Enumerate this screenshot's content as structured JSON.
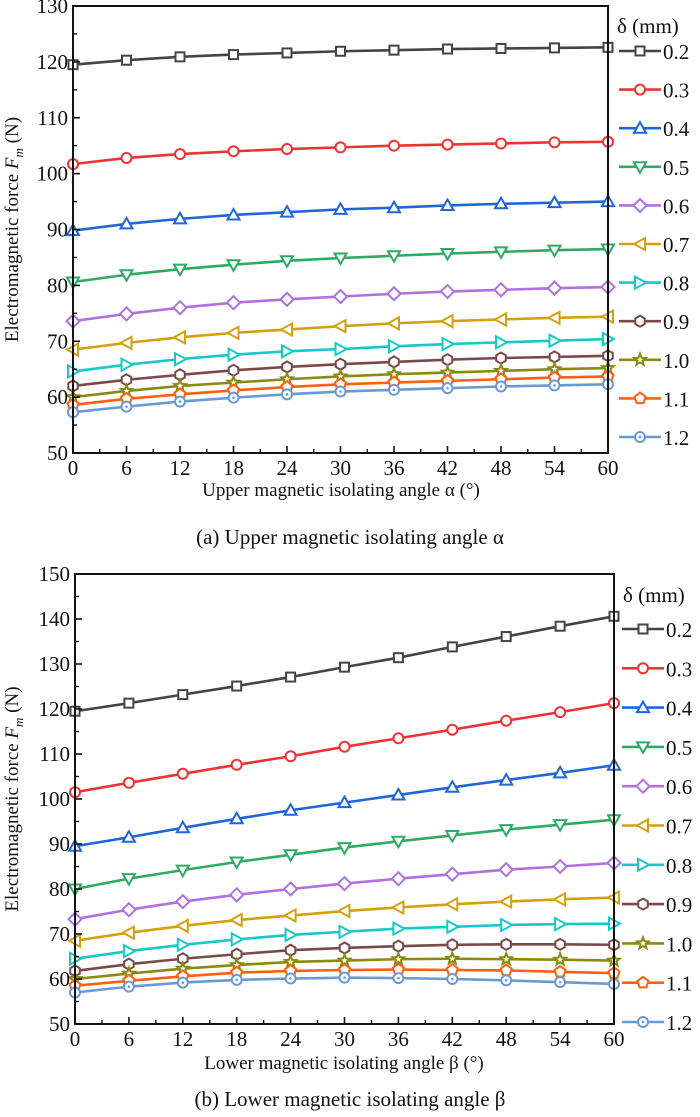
{
  "chart_data": [
    {
      "type": "line",
      "caption": "(a) Upper magnetic isolating angle α",
      "xlabel": "Upper magnetic isolating angle α (°)",
      "ylabel": "Electromagnetic force Fm (N)",
      "ylabel_parts": {
        "prefix": "Electromagnetic force ",
        "symbol": "F",
        "subscript": "m",
        "suffix": " (N)"
      },
      "xlim": [
        0,
        60
      ],
      "ylim": [
        50,
        130
      ],
      "xticks": [
        "0",
        "6",
        "12",
        "18",
        "24",
        "30",
        "36",
        "42",
        "48",
        "54",
        "60"
      ],
      "yticks": [
        "50",
        "60",
        "70",
        "80",
        "90",
        "100",
        "110",
        "120",
        "130"
      ],
      "grid": false,
      "legend_title": "δ (mm)",
      "legend_placement": "right-outside",
      "x": [
        0,
        6,
        12,
        18,
        24,
        30,
        36,
        42,
        48,
        54,
        60
      ],
      "series": [
        {
          "name": "0.2",
          "color": "#444444",
          "marker": "square",
          "values": [
            119.5,
            120.3,
            120.9,
            121.3,
            121.6,
            121.9,
            122.1,
            122.3,
            122.4,
            122.5,
            122.6
          ]
        },
        {
          "name": "0.3",
          "color": "#ee3333",
          "marker": "circle",
          "values": [
            101.7,
            102.8,
            103.5,
            104.0,
            104.4,
            104.7,
            105.0,
            105.2,
            105.4,
            105.6,
            105.7
          ]
        },
        {
          "name": "0.4",
          "color": "#1f66d9",
          "marker": "triangle-up",
          "values": [
            89.8,
            91.0,
            91.9,
            92.6,
            93.1,
            93.6,
            93.9,
            94.3,
            94.6,
            94.8,
            95.0
          ]
        },
        {
          "name": "0.5",
          "color": "#2eaa62",
          "marker": "triangle-down",
          "values": [
            80.6,
            81.9,
            82.9,
            83.7,
            84.4,
            84.9,
            85.3,
            85.7,
            86.0,
            86.3,
            86.5
          ]
        },
        {
          "name": "0.6",
          "color": "#b070e0",
          "marker": "diamond",
          "values": [
            73.6,
            74.9,
            76.0,
            76.9,
            77.5,
            78.0,
            78.5,
            78.9,
            79.2,
            79.5,
            79.7
          ]
        },
        {
          "name": "0.7",
          "color": "#d4a010",
          "marker": "triangle-left",
          "values": [
            68.5,
            69.7,
            70.7,
            71.5,
            72.1,
            72.7,
            73.2,
            73.6,
            73.9,
            74.2,
            74.4
          ]
        },
        {
          "name": "0.8",
          "color": "#16c8c8",
          "marker": "triangle-right",
          "values": [
            64.6,
            65.8,
            66.8,
            67.6,
            68.2,
            68.6,
            69.1,
            69.5,
            69.8,
            70.1,
            70.4
          ]
        },
        {
          "name": "0.9",
          "color": "#7a4a4a",
          "marker": "hexagon",
          "values": [
            62.0,
            63.1,
            64.0,
            64.8,
            65.4,
            65.9,
            66.3,
            66.7,
            67.0,
            67.2,
            67.4
          ]
        },
        {
          "name": "1.0",
          "color": "#8a8a10",
          "marker": "star",
          "values": [
            60.0,
            61.1,
            62.0,
            62.6,
            63.2,
            63.7,
            64.1,
            64.4,
            64.7,
            65.0,
            65.2
          ]
        },
        {
          "name": "1.1",
          "color": "#ff6010",
          "marker": "pentagon",
          "values": [
            58.6,
            59.7,
            60.5,
            61.2,
            61.8,
            62.3,
            62.6,
            62.9,
            63.2,
            63.5,
            63.7
          ]
        },
        {
          "name": "1.2",
          "color": "#6a9ad4",
          "marker": "circle-dot",
          "values": [
            57.3,
            58.3,
            59.2,
            59.9,
            60.5,
            61.0,
            61.3,
            61.6,
            61.9,
            62.1,
            62.3
          ]
        }
      ]
    },
    {
      "type": "line",
      "caption": "(b) Lower magnetic isolating angle β",
      "xlabel": "Lower magnetic isolating angle β (°)",
      "ylabel": "Electromagnetic force Fm (N)",
      "ylabel_parts": {
        "prefix": "Electromagnetic force ",
        "symbol": "F",
        "subscript": "m",
        "suffix": " (N)"
      },
      "xlim": [
        0,
        60
      ],
      "ylim": [
        50,
        150
      ],
      "xticks": [
        "0",
        "6",
        "12",
        "18",
        "24",
        "30",
        "36",
        "42",
        "48",
        "54",
        "60"
      ],
      "yticks": [
        "50",
        "60",
        "70",
        "80",
        "90",
        "100",
        "110",
        "120",
        "130",
        "140",
        "150"
      ],
      "grid": false,
      "legend_title": "δ (mm)",
      "legend_placement": "right-outside",
      "x": [
        0,
        6,
        12,
        18,
        24,
        30,
        36,
        42,
        48,
        54,
        60
      ],
      "series": [
        {
          "name": "0.2",
          "color": "#444444",
          "marker": "square",
          "values": [
            119.5,
            121.3,
            123.2,
            125.1,
            127.1,
            129.3,
            131.4,
            133.8,
            136.1,
            138.4,
            140.6
          ]
        },
        {
          "name": "0.3",
          "color": "#ee3333",
          "marker": "circle",
          "values": [
            101.5,
            103.6,
            105.6,
            107.6,
            109.5,
            111.6,
            113.5,
            115.4,
            117.4,
            119.3,
            121.3
          ]
        },
        {
          "name": "0.4",
          "color": "#1f66d9",
          "marker": "triangle-up",
          "values": [
            89.5,
            91.5,
            93.6,
            95.6,
            97.5,
            99.2,
            100.9,
            102.6,
            104.2,
            105.8,
            107.5
          ]
        },
        {
          "name": "0.5",
          "color": "#2eaa62",
          "marker": "triangle-down",
          "values": [
            80.0,
            82.3,
            84.2,
            86.0,
            87.6,
            89.2,
            90.6,
            91.9,
            93.2,
            94.3,
            95.4
          ]
        },
        {
          "name": "0.6",
          "color": "#b070e0",
          "marker": "diamond",
          "values": [
            73.3,
            75.4,
            77.2,
            78.7,
            80.0,
            81.2,
            82.3,
            83.3,
            84.3,
            85.0,
            85.8
          ]
        },
        {
          "name": "0.7",
          "color": "#d4a010",
          "marker": "triangle-left",
          "values": [
            68.5,
            70.3,
            71.8,
            73.1,
            74.1,
            75.1,
            75.9,
            76.6,
            77.2,
            77.7,
            78.1
          ]
        },
        {
          "name": "0.8",
          "color": "#16c8c8",
          "marker": "triangle-right",
          "values": [
            64.5,
            66.2,
            67.6,
            68.8,
            69.8,
            70.5,
            71.2,
            71.6,
            72.0,
            72.2,
            72.3
          ]
        },
        {
          "name": "0.9",
          "color": "#7a4a4a",
          "marker": "hexagon",
          "values": [
            61.8,
            63.3,
            64.5,
            65.5,
            66.4,
            66.9,
            67.3,
            67.6,
            67.7,
            67.7,
            67.6
          ]
        },
        {
          "name": "1.0",
          "color": "#8a8a10",
          "marker": "star",
          "values": [
            60.0,
            61.2,
            62.3,
            63.1,
            63.8,
            64.1,
            64.4,
            64.5,
            64.4,
            64.3,
            64.1
          ]
        },
        {
          "name": "1.1",
          "color": "#ff6010",
          "marker": "pentagon",
          "values": [
            58.5,
            59.6,
            60.6,
            61.4,
            61.8,
            62.0,
            62.1,
            62.0,
            61.9,
            61.6,
            61.3
          ]
        },
        {
          "name": "1.2",
          "color": "#6a9ad4",
          "marker": "circle-dot",
          "values": [
            57.0,
            58.3,
            59.2,
            59.8,
            60.1,
            60.3,
            60.2,
            60.0,
            59.7,
            59.3,
            58.9
          ]
        }
      ]
    }
  ]
}
